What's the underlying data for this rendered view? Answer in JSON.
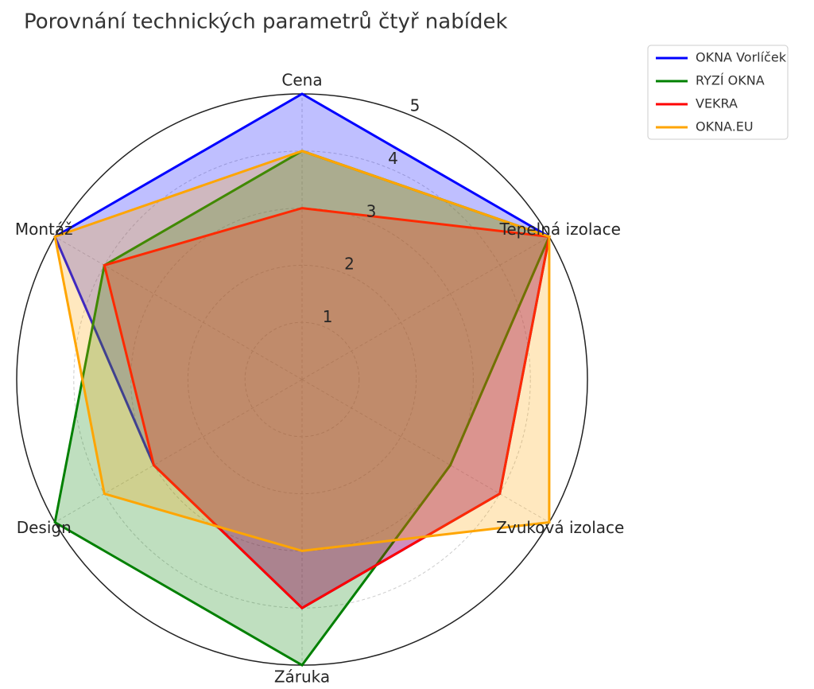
{
  "chart_data": {
    "type": "radar",
    "title": "Porovnání technických parametrů čtyř nabídek",
    "categories": [
      "Cena",
      "Tepelná izolace",
      "Zvuková izolace",
      "Záruka",
      "Design",
      "Montáž"
    ],
    "series": [
      {
        "name": "OKNA Vorlíček",
        "color": "#0000ff",
        "values": [
          5,
          5,
          4,
          4,
          3,
          5
        ]
      },
      {
        "name": "RYZÍ OKNA",
        "color": "#008000",
        "values": [
          4,
          5,
          3,
          5,
          5,
          4
        ]
      },
      {
        "name": "VEKRA",
        "color": "#ff0000",
        "values": [
          3,
          5,
          4,
          4,
          3,
          4
        ]
      },
      {
        "name": "OKNA.EU",
        "color": "#ffa500",
        "values": [
          4,
          5,
          5,
          3,
          4,
          5
        ]
      }
    ],
    "ylim": [
      0,
      5
    ],
    "yticks": [
      1,
      2,
      3,
      4,
      5
    ],
    "grid": true,
    "legend": "upper right"
  }
}
